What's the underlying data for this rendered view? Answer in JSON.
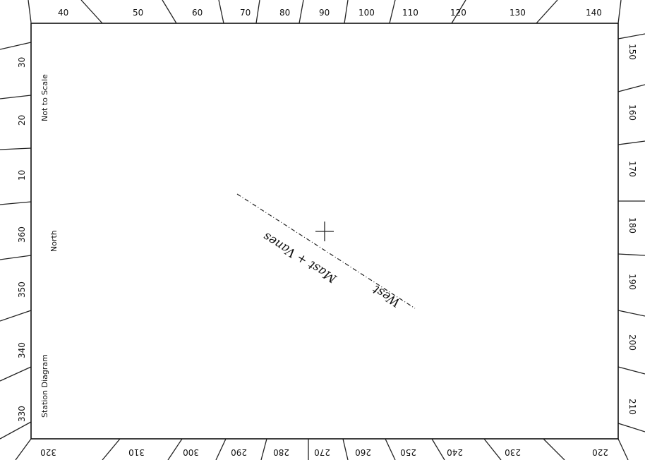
{
  "diagram": {
    "labels": {
      "not_to_scale": "Not to Scale",
      "north": "North",
      "station_diagram": "Station Diagram",
      "handwritten_1": "Mast + Vanes",
      "handwritten_2": "West"
    },
    "bearings": {
      "top": [
        "40",
        "50",
        "60",
        "70",
        "80",
        "90",
        "100",
        "110",
        "120",
        "130",
        "140"
      ],
      "right": [
        "150",
        "160",
        "170",
        "180",
        "190",
        "200",
        "210"
      ],
      "bottom": [
        "320",
        "310",
        "300",
        "290",
        "280",
        "270",
        "260",
        "250",
        "240",
        "230",
        "220"
      ],
      "left": [
        "330",
        "340",
        "350",
        "360",
        "10",
        "20",
        "30"
      ]
    },
    "colors": {
      "ink": "#111111",
      "paper": "#ffffff"
    }
  }
}
